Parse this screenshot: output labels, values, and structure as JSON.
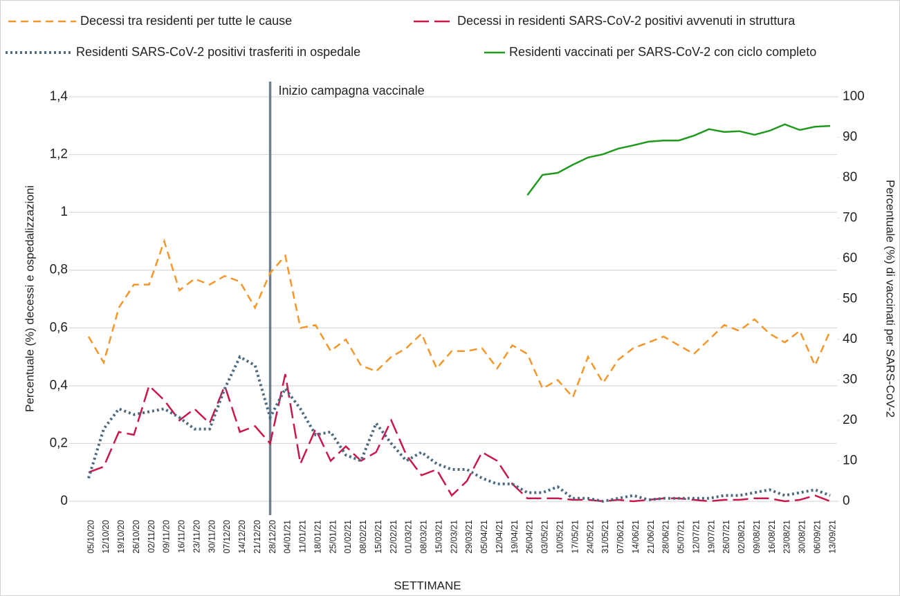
{
  "chart_data": {
    "type": "line",
    "x_label": "SETTIMANE",
    "y_label": "Percentuale (%) decessi e ospedalizzazioni",
    "y2_label": "Percentuale (%) di vaccinati per SARS-CoV-2",
    "categories": [
      "05/10/20",
      "12/10/20",
      "19/10/20",
      "26/10/20",
      "02/11/20",
      "09/11/20",
      "16/11/20",
      "23/11/20",
      "30/11/20",
      "07/12/20",
      "14/12/20",
      "21/12/20",
      "28/12/20",
      "04/01/21",
      "11/01/21",
      "18/01/21",
      "25/01/21",
      "01/02/21",
      "08/02/21",
      "15/02/21",
      "22/02/21",
      "01/03/21",
      "08/03/21",
      "15/03/21",
      "22/03/21",
      "29/03/21",
      "05/04/21",
      "12/04/21",
      "19/04/21",
      "26/04/21",
      "03/05/21",
      "10/05/21",
      "17/05/21",
      "24/05/21",
      "31/05/21",
      "07/06/21",
      "14/06/21",
      "21/06/21",
      "28/06/21",
      "05/07/21",
      "12/07/21",
      "19/07/21",
      "26/07/21",
      "02/08/21",
      "09/08/21",
      "16/08/21",
      "23/08/21",
      "30/08/21",
      "06/09/21",
      "13/09/21"
    ],
    "series": [
      {
        "name": "Decessi tra residenti per tutte le cause",
        "color": "#f5962a",
        "line_style": "dashed",
        "values": [
          0.57,
          0.48,
          0.67,
          0.75,
          0.75,
          0.9,
          0.73,
          0.77,
          0.75,
          0.78,
          0.76,
          0.67,
          0.79,
          0.85,
          0.6,
          0.61,
          0.52,
          0.56,
          0.47,
          0.45,
          0.5,
          0.53,
          0.58,
          0.46,
          0.52,
          0.52,
          0.53,
          0.46,
          0.54,
          0.51,
          0.39,
          0.42,
          0.36,
          0.5,
          0.41,
          0.49,
          0.53,
          0.55,
          0.57,
          0.54,
          0.51,
          0.56,
          0.61,
          0.59,
          0.63,
          0.58,
          0.55,
          0.59,
          0.47,
          0.59
        ]
      },
      {
        "name": "Decessi in residenti SARS-CoV-2 positivi avvenuti in struttura",
        "color": "#c8174a",
        "line_style": "longdash",
        "values": [
          0.1,
          0.12,
          0.24,
          0.23,
          0.4,
          0.35,
          0.28,
          0.32,
          0.27,
          0.4,
          0.24,
          0.26,
          0.2,
          0.44,
          0.13,
          0.25,
          0.14,
          0.19,
          0.14,
          0.17,
          0.28,
          0.16,
          0.09,
          0.11,
          0.02,
          0.07,
          0.17,
          0.14,
          0.06,
          0.01,
          0.01,
          0.01,
          0.005,
          0.005,
          0,
          0.005,
          0,
          0.005,
          0.01,
          0.01,
          0.005,
          0,
          0.005,
          0.005,
          0.01,
          0.01,
          0,
          0.005,
          0.02,
          0
        ]
      },
      {
        "name": "Residenti SARS-CoV-2 positivi trasferiti in ospedale",
        "color": "#4d6a80",
        "line_style": "dotted",
        "values": [
          0.08,
          0.25,
          0.32,
          0.3,
          0.31,
          0.32,
          0.29,
          0.25,
          0.25,
          0.39,
          0.5,
          0.47,
          0.29,
          0.39,
          0.32,
          0.23,
          0.24,
          0.16,
          0.14,
          0.27,
          0.2,
          0.14,
          0.17,
          0.13,
          0.11,
          0.11,
          0.08,
          0.06,
          0.06,
          0.03,
          0.03,
          0.05,
          0.01,
          0.01,
          0,
          0.01,
          0.02,
          0.005,
          0.01,
          0.01,
          0.01,
          0.01,
          0.02,
          0.02,
          0.03,
          0.04,
          0.02,
          0.03,
          0.04,
          0.02
        ]
      },
      {
        "name": "Residenti vaccinati per SARS-CoV-2 con ciclo completo",
        "color": "#1f9a1f",
        "line_style": "solid",
        "axis": "y2",
        "values": [
          null,
          null,
          null,
          null,
          null,
          null,
          null,
          null,
          null,
          null,
          null,
          null,
          null,
          null,
          null,
          null,
          null,
          null,
          null,
          null,
          null,
          null,
          null,
          null,
          null,
          null,
          null,
          null,
          null,
          75.7,
          80.7,
          81.2,
          83.2,
          85.0,
          85.8,
          87.2,
          88.0,
          88.9,
          89.2,
          89.2,
          90.4,
          92.0,
          91.3,
          91.5,
          90.6,
          91.6,
          93.2,
          91.8,
          92.6,
          92.8
        ]
      }
    ],
    "ylim": [
      0,
      1.4
    ],
    "yticks": [
      0,
      {
        "value": 0.2,
        "label": "0,2"
      },
      {
        "value": 0.4,
        "label": "0,4"
      },
      {
        "value": 0.6,
        "label": "0,6"
      },
      {
        "value": 0.8,
        "label": "0,8"
      },
      1,
      {
        "value": 1.2,
        "label": "1,2"
      },
      {
        "value": 1.4,
        "label": "1,4"
      }
    ],
    "y2lim": [
      0,
      100
    ],
    "y2ticks": [
      0,
      10,
      20,
      30,
      40,
      50,
      60,
      70,
      80,
      90,
      100
    ],
    "grid": true,
    "legend": "top",
    "annotation": {
      "text": "Inizio campagna vaccinale",
      "x": "28/12/20",
      "color": "#6b7f93"
    }
  }
}
